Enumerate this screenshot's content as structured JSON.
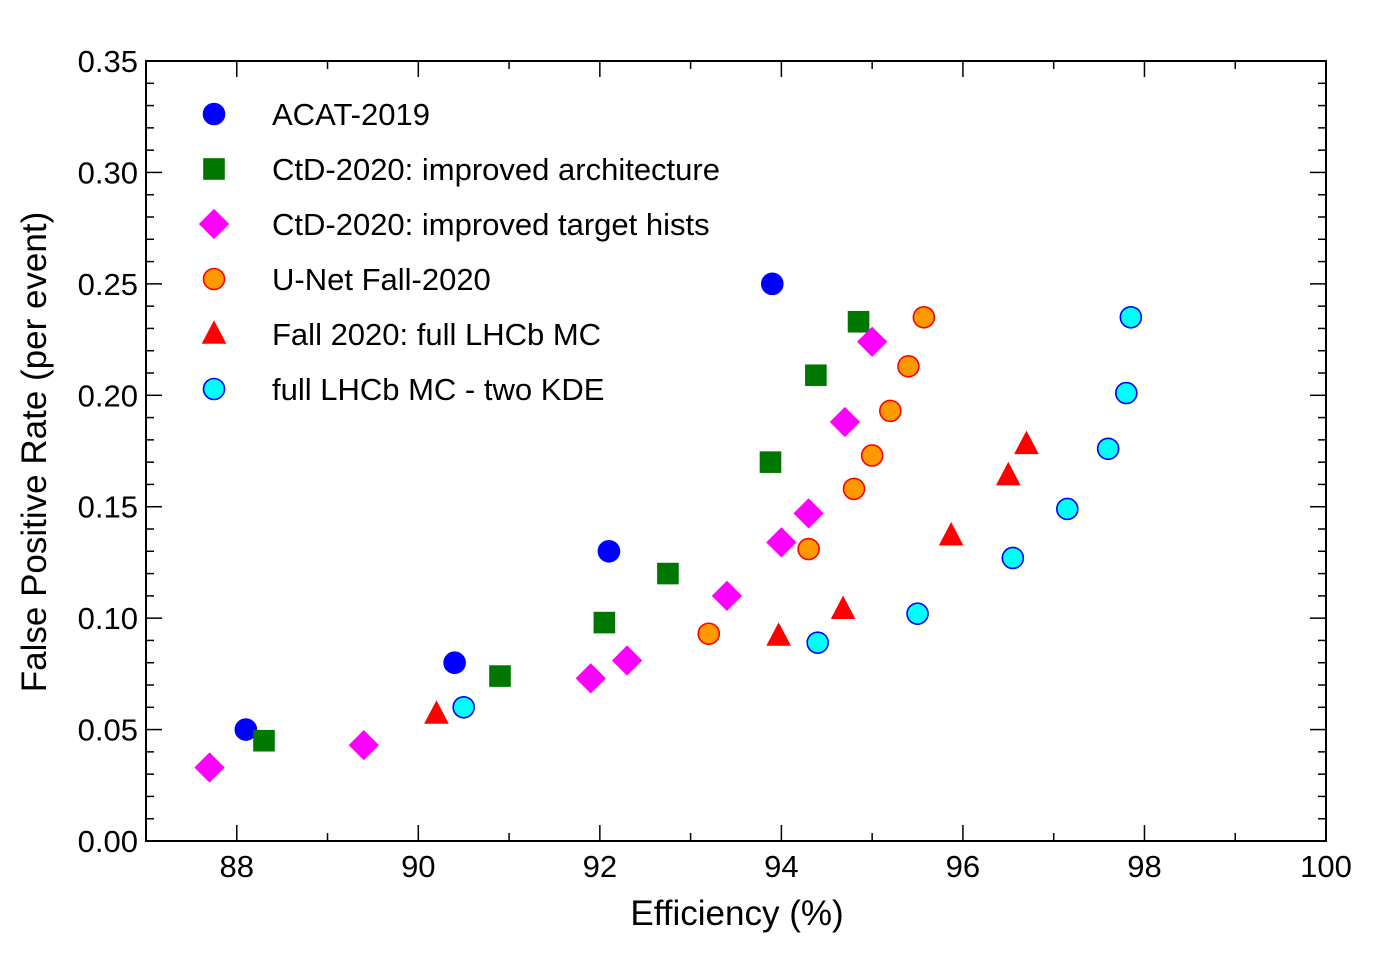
{
  "chart_data": {
    "type": "scatter",
    "xlabel": "Efficiency (%)",
    "ylabel": "False Positive Rate (per event)",
    "xlim": [
      87,
      100
    ],
    "ylim": [
      0,
      0.35
    ],
    "x_ticks": [
      "88",
      "90",
      "92",
      "94",
      "96",
      "98",
      "100"
    ],
    "y_ticks": [
      "0.00",
      "0.05",
      "0.10",
      "0.15",
      "0.20",
      "0.25",
      "0.30",
      "0.35"
    ],
    "grid": false,
    "legend_position": "top-left",
    "series": [
      {
        "name": "ACAT-2019",
        "marker": "circle",
        "color": "#0000ff",
        "edge": "#0000ff",
        "points": [
          [
            88.1,
            0.05
          ],
          [
            90.4,
            0.08
          ],
          [
            92.1,
            0.13
          ],
          [
            93.9,
            0.25
          ]
        ]
      },
      {
        "name": "CtD-2020: improved architecture",
        "marker": "square",
        "color": "#007700",
        "edge": "#007700",
        "points": [
          [
            88.3,
            0.045
          ],
          [
            90.9,
            0.074
          ],
          [
            92.05,
            0.098
          ],
          [
            92.75,
            0.12
          ],
          [
            93.88,
            0.17
          ],
          [
            94.38,
            0.209
          ],
          [
            94.85,
            0.233
          ]
        ]
      },
      {
        "name": "CtD-2020: improved target hists",
        "marker": "diamond",
        "color": "#ff00ff",
        "edge": "#ff00ff",
        "points": [
          [
            87.7,
            0.033
          ],
          [
            89.4,
            0.043
          ],
          [
            91.9,
            0.073
          ],
          [
            92.3,
            0.081
          ],
          [
            93.4,
            0.11
          ],
          [
            94.0,
            0.134
          ],
          [
            94.3,
            0.147
          ],
          [
            94.7,
            0.188
          ],
          [
            95.0,
            0.224
          ]
        ]
      },
      {
        "name": "U-Net Fall-2020",
        "marker": "circle",
        "color": "#ff9900",
        "edge": "#ff0000",
        "points": [
          [
            93.2,
            0.093
          ],
          [
            94.3,
            0.131
          ],
          [
            94.8,
            0.158
          ],
          [
            95.0,
            0.173
          ],
          [
            95.2,
            0.193
          ],
          [
            95.4,
            0.213
          ],
          [
            95.57,
            0.235
          ]
        ]
      },
      {
        "name": "Fall 2020: full LHCb MC",
        "marker": "triangle",
        "color": "#ff0000",
        "edge": "#ff0000",
        "points": [
          [
            90.2,
            0.057
          ],
          [
            93.97,
            0.092
          ],
          [
            94.68,
            0.104
          ],
          [
            95.87,
            0.137
          ],
          [
            96.5,
            0.164
          ],
          [
            96.7,
            0.178
          ]
        ]
      },
      {
        "name": "full LHCb MC - two KDE",
        "marker": "circle",
        "color": "#00ffff",
        "edge": "#0000ff",
        "points": [
          [
            90.5,
            0.06
          ],
          [
            94.4,
            0.089
          ],
          [
            95.5,
            0.102
          ],
          [
            96.55,
            0.127
          ],
          [
            97.15,
            0.149
          ],
          [
            97.6,
            0.176
          ],
          [
            97.8,
            0.201
          ],
          [
            97.85,
            0.235
          ]
        ]
      }
    ]
  }
}
